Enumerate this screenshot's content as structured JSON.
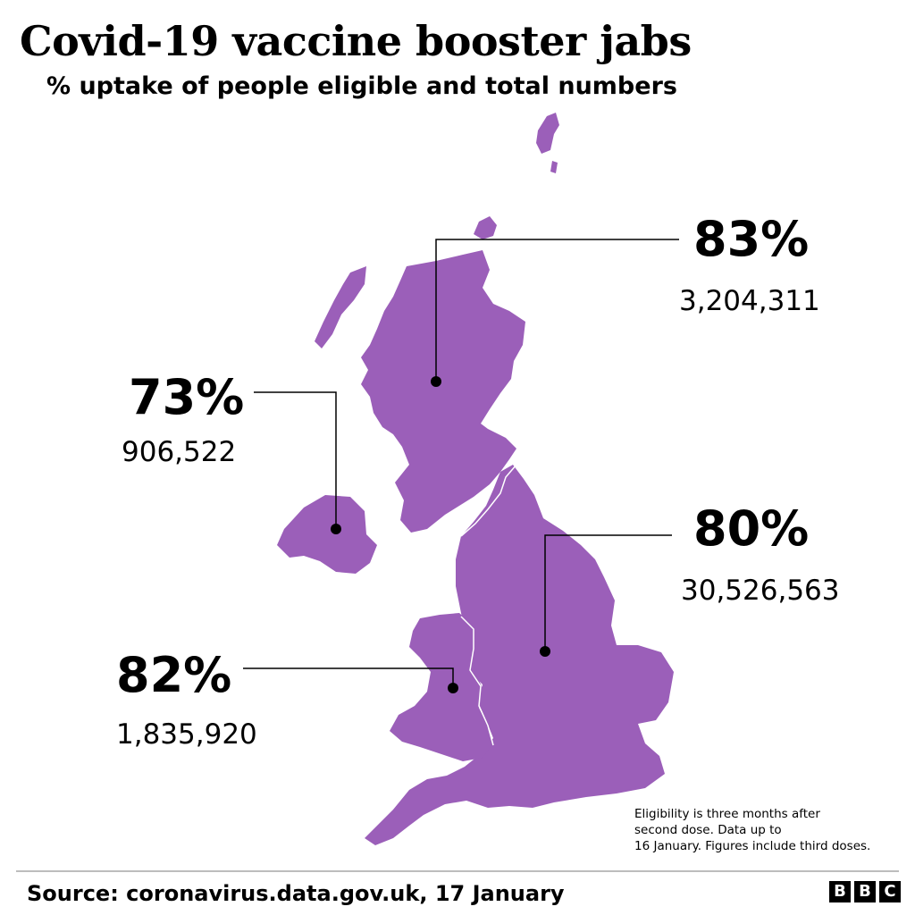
{
  "title": "Covid-19 vaccine booster jabs",
  "subtitle": "% uptake of people eligible and total numbers",
  "map_color": "#9b5fb9",
  "regions": [
    {
      "name": "Scotland",
      "uptake": "83%",
      "total": "3,204,311"
    },
    {
      "name": "Northern Ireland",
      "uptake": "73%",
      "total": "906,522"
    },
    {
      "name": "England",
      "uptake": "80%",
      "total": "30,526,563"
    },
    {
      "name": "Wales",
      "uptake": "82%",
      "total": "1,835,920"
    }
  ],
  "note_lines": [
    "Eligibility is three months after",
    "second dose. Data up to",
    "16 January. Figures include third doses."
  ],
  "source": "Source: coronavirus.data.gov.uk, 17 January",
  "logo": [
    "B",
    "B",
    "C"
  ]
}
